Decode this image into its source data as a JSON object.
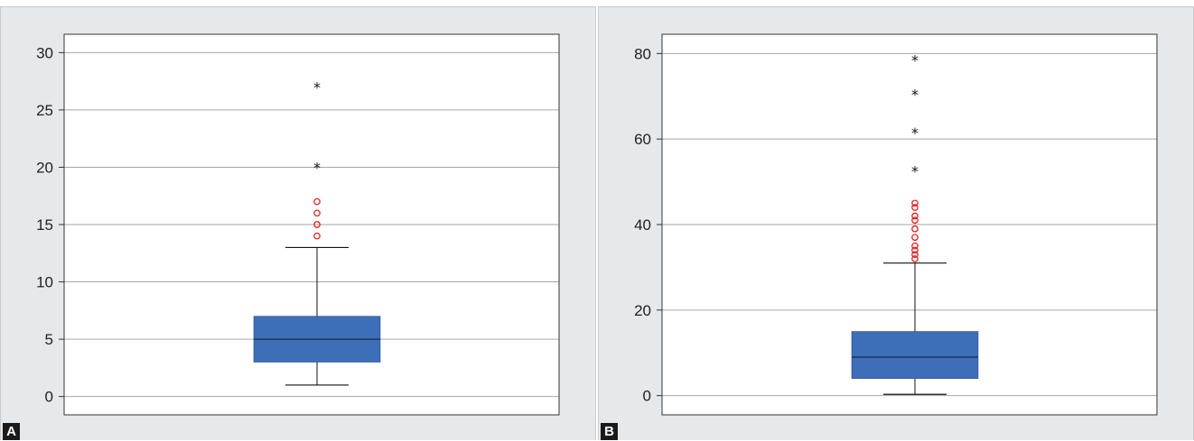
{
  "colors": {
    "panel_bg": "#e7e8ea",
    "plot_bg": "#ffffff",
    "box_fill": "#3d6eb8",
    "grid": "#a6a6a6",
    "outlier_circle": "#e02020",
    "extreme_star": "#111111",
    "axis": "#333333"
  },
  "chart_data": [
    {
      "type": "box",
      "panel_label": "A",
      "title": "",
      "xlabel": "",
      "ylabel": "",
      "ylim": [
        -1.6,
        31.6
      ],
      "yticks": [
        0,
        5,
        10,
        15,
        20,
        25,
        30
      ],
      "grid": "horizontal",
      "box": {
        "whisker_low": 1,
        "q1": 3,
        "median": 5,
        "q3": 7,
        "whisker_high": 13
      },
      "outliers": [
        14,
        15,
        16,
        17
      ],
      "extremes": [
        20,
        27
      ]
    },
    {
      "type": "box",
      "panel_label": "B",
      "title": "",
      "xlabel": "",
      "ylabel": "",
      "ylim": [
        -4.5,
        84.5
      ],
      "yticks": [
        0,
        20,
        40,
        60,
        80
      ],
      "grid": "horizontal",
      "box": {
        "whisker_low": 0.3,
        "q1": 4,
        "median": 9,
        "q3": 15,
        "whisker_high": 31
      },
      "outliers": [
        32,
        33,
        34,
        35,
        37,
        39,
        41,
        42,
        44,
        45
      ],
      "extremes": [
        52.5,
        61.5,
        70.5,
        78.5
      ]
    }
  ]
}
